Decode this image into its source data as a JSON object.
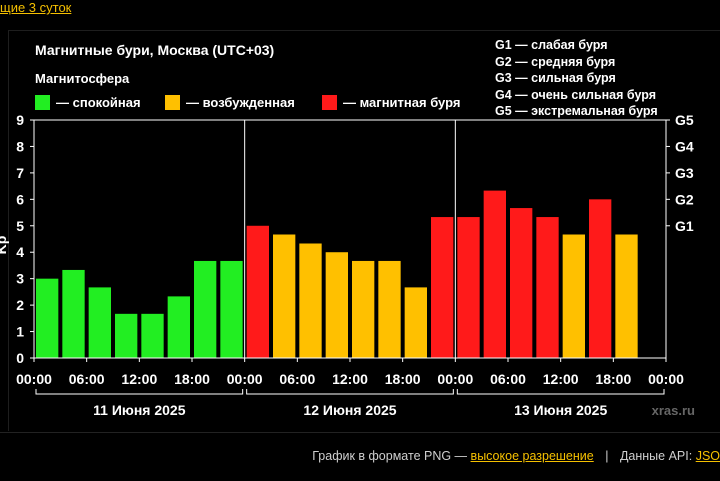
{
  "top_link": "щие 3 суток",
  "legend": {
    "items": [
      {
        "label": "— спокойная",
        "color": "#22ee22"
      },
      {
        "label": "— возбужденная",
        "color": "#ffc000"
      },
      {
        "label": "— магнитная буря",
        "color": "#ff1a1a"
      }
    ]
  },
  "g_scale": [
    "G1 — слабая буря",
    "G2 — средняя буря",
    "G3 — сильная буря",
    "G4 — очень сильная буря",
    "G5 — экстремальная буря"
  ],
  "watermark": "xras.ru",
  "footer": {
    "text1": "График в формате PNG —",
    "link1": "высокое разрешение",
    "sep": "|",
    "text2": "Данные API:",
    "link2": "JSO"
  },
  "chart_data": {
    "type": "bar",
    "title": "Магнитные бури, Москва (UTC+03)",
    "subtitle": "Магнитосфера",
    "ylabel": "Kp",
    "ylim": [
      0,
      9
    ],
    "yticks": [
      "0",
      "1",
      "2",
      "3",
      "4",
      "5",
      "6",
      "7",
      "8",
      "9"
    ],
    "right_ticks": [
      {
        "label": "G1",
        "value": 5
      },
      {
        "label": "G2",
        "value": 6
      },
      {
        "label": "G3",
        "value": 7
      },
      {
        "label": "G4",
        "value": 8
      },
      {
        "label": "G5",
        "value": 9
      }
    ],
    "x_tick_labels": [
      "00:00",
      "06:00",
      "12:00",
      "18:00",
      "00:00",
      "06:00",
      "12:00",
      "18:00",
      "00:00",
      "06:00",
      "12:00",
      "18:00",
      "00:00"
    ],
    "days": [
      "11 Июня 2025",
      "12 Июня 2025",
      "13 Июня 2025"
    ],
    "values": [
      3.0,
      3.33,
      2.67,
      1.67,
      1.67,
      2.33,
      3.67,
      3.67,
      5.0,
      4.67,
      4.33,
      4.0,
      3.67,
      3.67,
      2.67,
      5.33,
      5.33,
      6.33,
      5.67,
      5.33,
      4.67,
      6.0,
      4.67
    ],
    "levels": [
      "quiet",
      "quiet",
      "quiet",
      "quiet",
      "quiet",
      "quiet",
      "quiet",
      "quiet",
      "storm",
      "active",
      "active",
      "active",
      "active",
      "active",
      "active",
      "storm",
      "storm",
      "storm",
      "storm",
      "storm",
      "active",
      "storm",
      "active"
    ],
    "grid": false,
    "legend_position": "top-left"
  }
}
